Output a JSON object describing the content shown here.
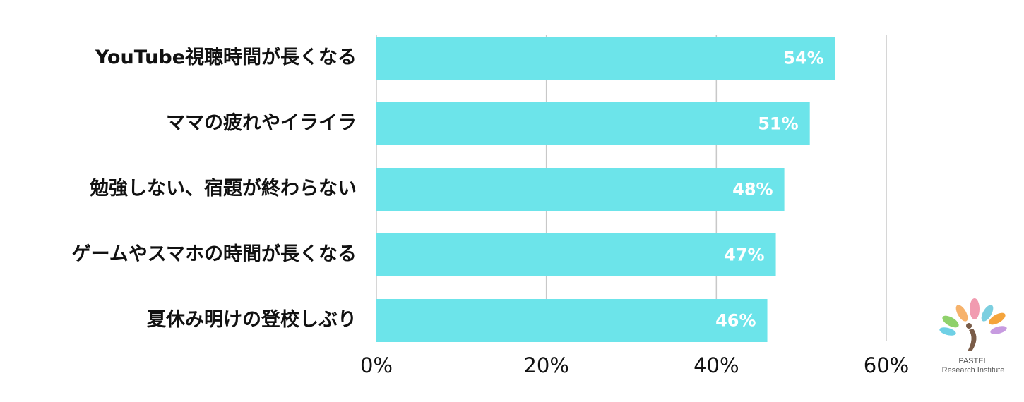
{
  "chart_data": {
    "type": "bar",
    "orientation": "horizontal",
    "categories": [
      "YouTube視聴時間が長くなる",
      "ママの疲れやイライラ",
      "勉強しない、宿題が終わらない",
      "ゲームやスマホの時間が長くなる",
      "夏休み明けの登校しぶり"
    ],
    "values": [
      54,
      51,
      48,
      47,
      46
    ],
    "value_labels": [
      "54%",
      "51%",
      "48%",
      "47%",
      "46%"
    ],
    "color": "#6ce4ea",
    "xlim": [
      0,
      60
    ],
    "xticks": [
      {
        "value": 0,
        "label": "0%"
      },
      {
        "value": 20,
        "label": "20%"
      },
      {
        "value": 40,
        "label": "40%"
      },
      {
        "value": 60,
        "label": "60%"
      }
    ],
    "grid": true
  },
  "logo": {
    "name": "PASTEL",
    "subtitle": "Research Institute"
  }
}
